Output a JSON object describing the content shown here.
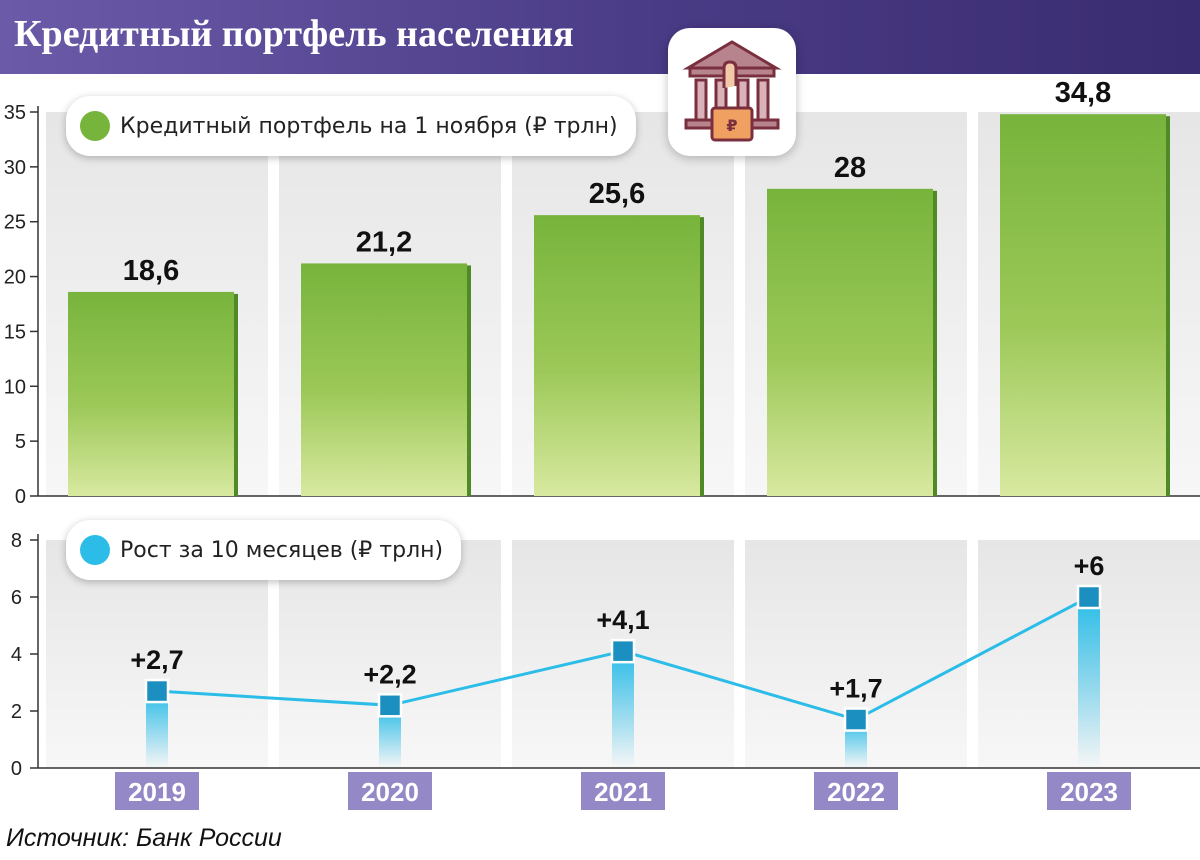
{
  "title": "Кредитный портфель населения",
  "source": "Источник: Банк России",
  "icon": "bank-building-ruble-icon",
  "colors": {
    "header": "#4a3b86",
    "bar_top": "#77b43c",
    "bar_bottom": "#d8e9a0",
    "line": "#2bbde8",
    "marker": "#1a8fc0",
    "year_label_bg": "#9489c6"
  },
  "chart_data": [
    {
      "type": "bar",
      "legend": "Кредитный портфель на 1 ноября (₽ трлн)",
      "categories": [
        "2019",
        "2020",
        "2021",
        "2022",
        "2023"
      ],
      "values": [
        18.6,
        21.2,
        25.6,
        28,
        34.8
      ],
      "value_labels": [
        "18,6",
        "21,2",
        "25,6",
        "28",
        "34,8"
      ],
      "ylim": [
        0,
        35
      ],
      "yticks": [
        0,
        5,
        10,
        15,
        20,
        25,
        30,
        35
      ],
      "grid": false
    },
    {
      "type": "line",
      "legend": "Рост за 10 месяцев (₽ трлн)",
      "categories": [
        "2019",
        "2020",
        "2021",
        "2022",
        "2023"
      ],
      "values": [
        2.7,
        2.2,
        4.1,
        1.7,
        6
      ],
      "value_labels": [
        "+2,7",
        "+2,2",
        "+4,1",
        "+1,7",
        "+6"
      ],
      "ylim": [
        0,
        8
      ],
      "yticks": [
        0,
        2,
        4,
        6,
        8
      ],
      "grid": false
    }
  ]
}
